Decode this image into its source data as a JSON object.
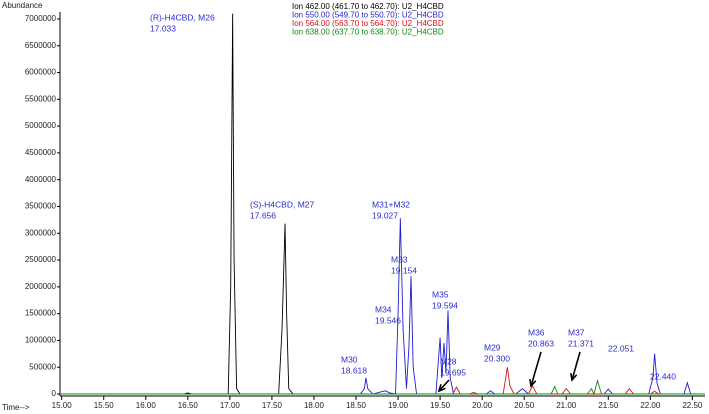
{
  "chart_data": {
    "type": "line",
    "y_label": "Abundance",
    "x_label": "Time-->",
    "xlim": [
      14.98,
      22.65
    ],
    "ylim": [
      0,
      7130000
    ],
    "xticks": [
      {
        "value": 15,
        "label": "15.00"
      },
      {
        "value": 15.5,
        "label": "15.50"
      },
      {
        "value": 16,
        "label": "16.00"
      },
      {
        "value": 16.5,
        "label": "16.50"
      },
      {
        "value": 17,
        "label": "17.00"
      },
      {
        "value": 17.5,
        "label": "17.50"
      },
      {
        "value": 18,
        "label": "18.00"
      },
      {
        "value": 18.5,
        "label": "18.50"
      },
      {
        "value": 19,
        "label": "19.00"
      },
      {
        "value": 19.5,
        "label": "19.50"
      },
      {
        "value": 20,
        "label": "20.00"
      },
      {
        "value": 20.5,
        "label": "20.50"
      },
      {
        "value": 21,
        "label": "21.00"
      },
      {
        "value": 21.5,
        "label": "21.50"
      },
      {
        "value": 22,
        "label": "22.00"
      },
      {
        "value": 22.5,
        "label": "22.50"
      }
    ],
    "yticks": [
      0,
      500000,
      1000000,
      1500000,
      2000000,
      2500000,
      3000000,
      3500000,
      4000000,
      4500000,
      5000000,
      5500000,
      6000000,
      6500000,
      7000000
    ],
    "grid": false,
    "series": [
      {
        "name": "Ion 462.00 (461.70 to 462.70): U2_H4CBD",
        "color": "#000000",
        "x": [
          14.98,
          16.45,
          16.5,
          16.55,
          16.98,
          17.01,
          17.033,
          17.05,
          17.08,
          17.12,
          17.58,
          17.62,
          17.656,
          17.675,
          17.7,
          17.75,
          22.65
        ],
        "values": [
          0,
          0,
          20000,
          0,
          0,
          2000000,
          7100000,
          2500000,
          100000,
          0,
          0,
          1200000,
          3180000,
          1500000,
          100000,
          0,
          0
        ]
      },
      {
        "name": "Ion 550.00 (549.70 to 550.70): U2_H4CBD",
        "color": "#1f1fd0",
        "x": [
          14.98,
          18.55,
          18.6,
          18.618,
          18.64,
          18.7,
          18.8,
          18.85,
          18.9,
          18.97,
          19.0,
          19.027,
          19.06,
          19.1,
          19.13,
          19.154,
          19.18,
          19.22,
          19.45,
          19.5,
          19.52,
          19.546,
          19.57,
          19.594,
          19.62,
          19.66,
          20.05,
          20.1,
          20.15,
          20.4,
          20.48,
          20.55,
          21.45,
          21.5,
          21.55,
          21.98,
          22.03,
          22.051,
          22.08,
          22.12,
          22.4,
          22.44,
          22.48,
          22.65
        ],
        "values": [
          0,
          0,
          100000,
          300000,
          100000,
          0,
          40000,
          60000,
          20000,
          0,
          1500000,
          3280000,
          1200000,
          100000,
          900000,
          2200000,
          500000,
          0,
          0,
          1050000,
          300000,
          950000,
          400000,
          1560000,
          300000,
          0,
          0,
          60000,
          0,
          0,
          100000,
          0,
          0,
          90000,
          0,
          0,
          300000,
          750000,
          200000,
          0,
          0,
          210000,
          0,
          0
        ]
      },
      {
        "name": "Ion 564.00 (563.70 to 564.70): U2_H4CBD",
        "color": "#e01010",
        "x": [
          14.98,
          19.65,
          19.695,
          19.74,
          20.25,
          20.3,
          20.33,
          20.38,
          20.55,
          20.6,
          20.65,
          20.95,
          21.0,
          21.05,
          21.7,
          21.75,
          21.8,
          22.0,
          22.05,
          22.1,
          22.65
        ],
        "values": [
          0,
          0,
          130000,
          0,
          0,
          500000,
          150000,
          0,
          0,
          150000,
          0,
          0,
          100000,
          0,
          0,
          100000,
          0,
          0,
          50000,
          0,
          0
        ]
      },
      {
        "name": "Ion 638.00 (637.70 to 638.70): U2_H4CBD",
        "color": "#108a10",
        "x": [
          14.98,
          19.85,
          19.9,
          19.95,
          20.82,
          20.863,
          20.9,
          21.25,
          21.3,
          21.33,
          21.371,
          21.42,
          22.65
        ],
        "values": [
          0,
          0,
          30000,
          0,
          0,
          140000,
          0,
          0,
          100000,
          0,
          250000,
          0,
          0
        ]
      }
    ],
    "annotations": [
      {
        "lines": [
          "(R)-H4CBD, M26",
          "17.033"
        ]
      },
      {
        "lines": [
          "(S)-H4CBD, M27",
          "17.656"
        ]
      },
      {
        "lines": [
          "M31+M32",
          "19.027"
        ]
      },
      {
        "lines": [
          "M33",
          "19.154"
        ]
      },
      {
        "lines": [
          "M34",
          "19.546"
        ]
      },
      {
        "lines": [
          "M35",
          "19.594"
        ]
      },
      {
        "lines": [
          "M30",
          "18.618"
        ]
      },
      {
        "lines": [
          "M28",
          "19.695"
        ]
      },
      {
        "lines": [
          "M29",
          "20.300"
        ]
      },
      {
        "lines": [
          "M36",
          "20.863"
        ]
      },
      {
        "lines": [
          "M37",
          "21.371"
        ]
      },
      {
        "lines": [
          "22.051"
        ]
      },
      {
        "lines": [
          "22.440"
        ]
      }
    ]
  }
}
